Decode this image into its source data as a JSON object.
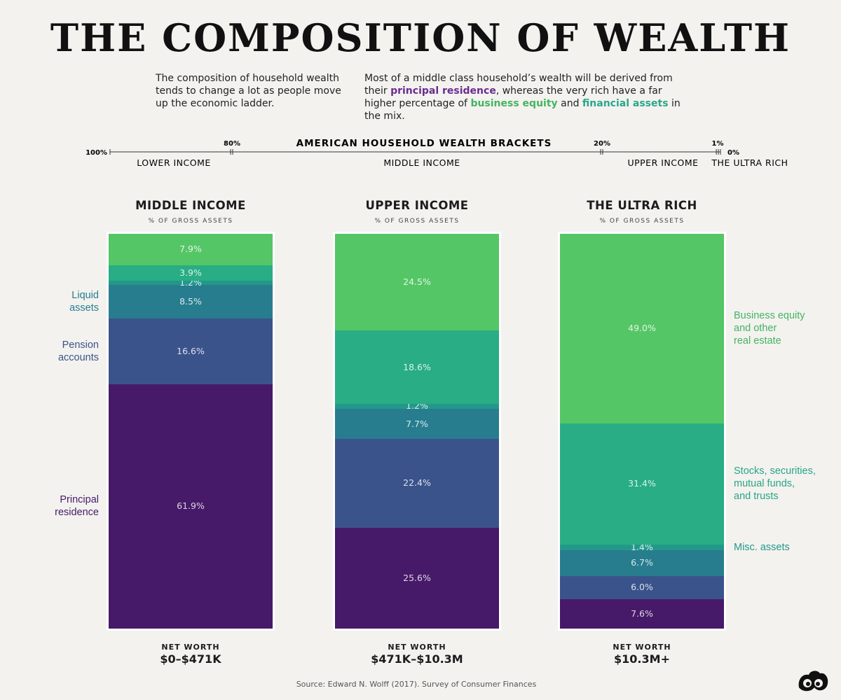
{
  "title": "THE COMPOSITION OF WEALTH",
  "intro": {
    "left": "The composition of household wealth tends to change a lot as people move up the economic ladder.",
    "right_part1": "Most of a middle class household’s wealth will be derived from their ",
    "right_hl1": "principal residence",
    "right_part2": ", whereas the very rich have a far higher percentage of ",
    "right_hl2": "business equity",
    "right_part3": " and ",
    "right_hl3": "financial assets",
    "right_part4": " in the mix."
  },
  "brackets": {
    "title": "AMERICAN HOUSEHOLD WEALTH BRACKETS",
    "ticks": [
      {
        "label": "100%",
        "value": 100
      },
      {
        "label": "80%",
        "value": 80
      },
      {
        "label": "20%",
        "value": 20
      },
      {
        "label": "1%",
        "value": 1
      },
      {
        "label": "0%",
        "value": 0
      }
    ],
    "groups": [
      "LOWER INCOME",
      "MIDDLE INCOME",
      "UPPER INCOME",
      "THE ULTRA RICH"
    ]
  },
  "colors": {
    "principal": "#461a68",
    "pension": "#3b538b",
    "liquid": "#277d8e",
    "misc": "#23988a",
    "stocks": "#28ad85",
    "business": "#55c666"
  },
  "chart_data": {
    "type": "bar",
    "stacked": true,
    "subtitle": "% OF GROSS ASSETS",
    "categories": [
      "MIDDLE INCOME",
      "UPPER INCOME",
      "THE ULTRA RICH"
    ],
    "net_worth_label": "NET WORTH",
    "net_worth": [
      "$0–$471K",
      "$471K–$10.3M",
      "$10.3M+"
    ],
    "series": [
      {
        "name": "Principal residence",
        "color": "#461a68",
        "values": [
          61.9,
          25.6,
          7.6
        ]
      },
      {
        "name": "Pension accounts",
        "color": "#3b538b",
        "values": [
          16.6,
          22.4,
          6.0
        ]
      },
      {
        "name": "Liquid assets",
        "color": "#277d8e",
        "values": [
          8.5,
          7.7,
          6.7
        ]
      },
      {
        "name": "Misc. assets",
        "color": "#23988a",
        "values": [
          1.2,
          1.2,
          1.4
        ]
      },
      {
        "name": "Stocks, securities, mutual funds, and trusts",
        "color": "#28ad85",
        "values": [
          3.9,
          18.6,
          31.4
        ]
      },
      {
        "name": "Business equity and other real estate",
        "color": "#55c666",
        "values": [
          7.9,
          24.5,
          49.0
        ]
      }
    ],
    "ylim": [
      0,
      100
    ]
  },
  "side_labels": {
    "left": [
      {
        "text": "Liquid\nassets",
        "series": 2,
        "color": "#277d8e"
      },
      {
        "text": "Pension\naccounts",
        "series": 1,
        "color": "#3b538b"
      },
      {
        "text": "Principal\nresidence",
        "series": 0,
        "color": "#461a68"
      }
    ],
    "right": [
      {
        "text": "Business equity\nand other\nreal estate",
        "series": 5,
        "color": "#45b362"
      },
      {
        "text": "Stocks, securities,\nmutual funds,\nand trusts",
        "series": 4,
        "color": "#28a585"
      },
      {
        "text": "Misc. assets",
        "series": 3,
        "color": "#23988a"
      }
    ]
  },
  "source": "Source: Edward N. Wolff (2017). Survey of Consumer Finances",
  "logo_icon": "visual-capitalist-logo-icon"
}
